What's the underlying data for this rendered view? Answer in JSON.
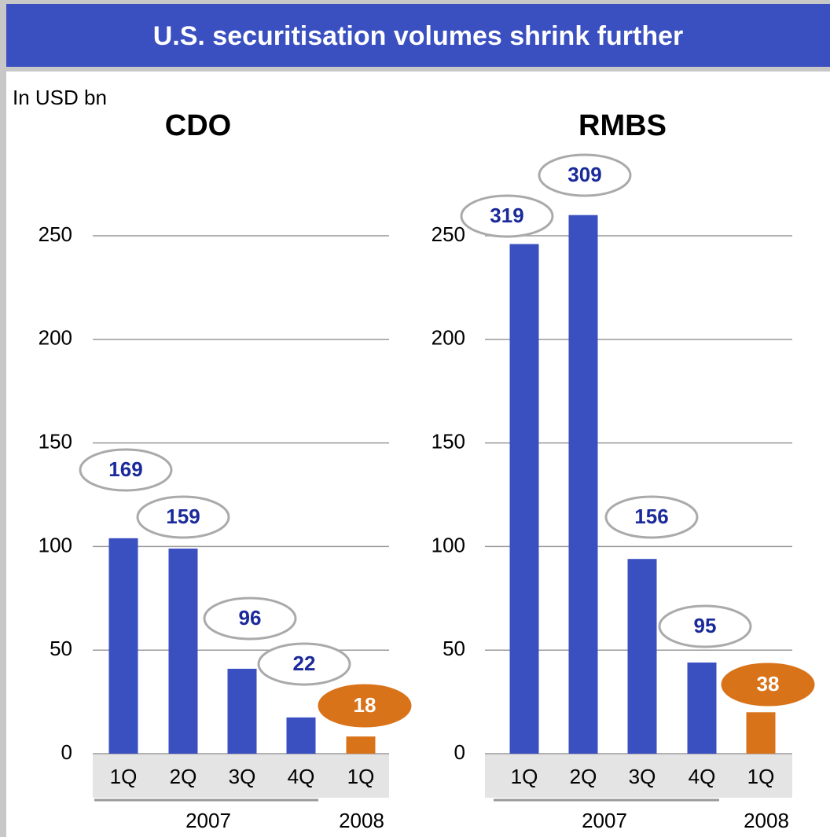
{
  "title": "U.S. securitisation volumes shrink further",
  "unit_label": "In USD bn",
  "chart_data": [
    {
      "type": "bar",
      "title": "CDO",
      "categories": [
        "1Q",
        "2Q",
        "3Q",
        "4Q",
        "1Q"
      ],
      "groups": [
        "2007",
        "2008"
      ],
      "values": [
        104,
        99,
        41,
        17.5,
        8.3
      ],
      "colors": [
        "#3a4fc0",
        "#3a4fc0",
        "#3a4fc0",
        "#3a4fc0",
        "#d9731a"
      ],
      "annotations": [
        "169",
        "159",
        "96",
        "22",
        "18"
      ],
      "ylim": [
        0,
        250
      ],
      "yticks": [
        0,
        50,
        100,
        150,
        200,
        250
      ],
      "grid": true
    },
    {
      "type": "bar",
      "title": "RMBS",
      "categories": [
        "1Q",
        "2Q",
        "3Q",
        "4Q",
        "1Q"
      ],
      "groups": [
        "2007",
        "2008"
      ],
      "values": [
        246,
        260,
        94,
        44,
        20
      ],
      "colors": [
        "#3a4fc0",
        "#3a4fc0",
        "#3a4fc0",
        "#3a4fc0",
        "#d9731a"
      ],
      "annotations": [
        "319",
        "309",
        "156",
        "95",
        "38"
      ],
      "ylim": [
        0,
        250
      ],
      "yticks": [
        0,
        50,
        100,
        150,
        200,
        250
      ],
      "grid": true
    }
  ]
}
